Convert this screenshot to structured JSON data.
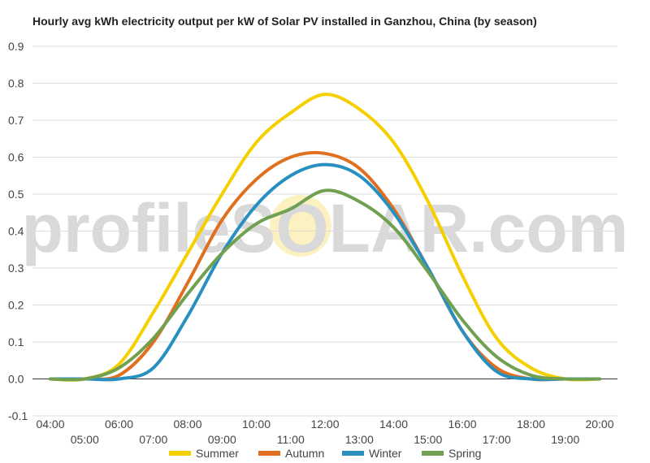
{
  "chart_data": {
    "type": "line",
    "title": "Hourly avg kWh electricity output per kW of Solar PV installed in Ganzhou, China (by season)",
    "watermark": "profileSOLAR.com",
    "xlabel": "",
    "ylabel": "",
    "ylim": [
      -0.1,
      0.9
    ],
    "yticks": [
      "-0.1",
      "0.0",
      "0.1",
      "0.2",
      "0.3",
      "0.4",
      "0.5",
      "0.6",
      "0.7",
      "0.8",
      "0.9"
    ],
    "x": [
      "04:00",
      "05:00",
      "06:00",
      "07:00",
      "08:00",
      "09:00",
      "10:00",
      "11:00",
      "12:00",
      "13:00",
      "14:00",
      "15:00",
      "16:00",
      "17:00",
      "18:00",
      "19:00",
      "20:00"
    ],
    "grid": true,
    "legend_position": "bottom",
    "series": [
      {
        "name": "Summer",
        "color": "#f5d000",
        "values": [
          0.0,
          0.0,
          0.04,
          0.18,
          0.34,
          0.5,
          0.64,
          0.72,
          0.77,
          0.73,
          0.64,
          0.48,
          0.28,
          0.11,
          0.03,
          0.0,
          0.0
        ]
      },
      {
        "name": "Autumn",
        "color": "#e07020",
        "values": [
          0.0,
          0.0,
          0.01,
          0.1,
          0.26,
          0.43,
          0.54,
          0.6,
          0.61,
          0.57,
          0.46,
          0.3,
          0.13,
          0.03,
          0.0,
          0.0,
          0.0
        ]
      },
      {
        "name": "Winter",
        "color": "#2890c0",
        "values": [
          0.0,
          0.0,
          0.0,
          0.03,
          0.17,
          0.34,
          0.47,
          0.55,
          0.58,
          0.55,
          0.45,
          0.3,
          0.13,
          0.02,
          0.0,
          0.0,
          0.0
        ]
      },
      {
        "name": "Spring",
        "color": "#70a050",
        "values": [
          0.0,
          0.0,
          0.03,
          0.11,
          0.23,
          0.34,
          0.42,
          0.46,
          0.51,
          0.48,
          0.41,
          0.29,
          0.16,
          0.06,
          0.01,
          0.0,
          0.0
        ]
      }
    ]
  }
}
